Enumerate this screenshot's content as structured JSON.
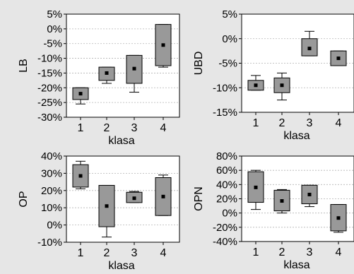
{
  "chart_data": [
    {
      "type": "box",
      "ylabel": "LB",
      "xlabel": "klasa",
      "categories": [
        "1",
        "2",
        "3",
        "4"
      ],
      "yticks": [
        "5%",
        "0%",
        "-5%",
        "-10%",
        "-15%",
        "-20%",
        "-25%",
        "-30%"
      ],
      "ytick_values": [
        5,
        0,
        -5,
        -10,
        -15,
        -20,
        -25,
        -30
      ],
      "ylim": [
        -30,
        5
      ],
      "series": [
        {
          "category": "1",
          "whisker_low": -25.5,
          "q1": -24,
          "mean": -22,
          "q3": -20,
          "whisker_high": -20
        },
        {
          "category": "2",
          "whisker_low": -18.5,
          "q1": -17.5,
          "mean": -15,
          "q3": -13,
          "whisker_high": -13
        },
        {
          "category": "3",
          "whisker_low": -21.5,
          "q1": -18.5,
          "mean": -13.5,
          "q3": -9,
          "whisker_high": -9
        },
        {
          "category": "4",
          "whisker_low": -13,
          "q1": -12.5,
          "mean": -5.5,
          "q3": 1.5,
          "whisker_high": 1.5
        }
      ]
    },
    {
      "type": "box",
      "ylabel": "UBD",
      "xlabel": "klasa",
      "categories": [
        "1",
        "2",
        "3",
        "4"
      ],
      "yticks": [
        "5%",
        "0%",
        "-5%",
        "-10%",
        "-15%"
      ],
      "ytick_values": [
        5,
        0,
        -5,
        -10,
        -15
      ],
      "ylim": [
        -15,
        5
      ],
      "series": [
        {
          "category": "1",
          "whisker_low": -10.5,
          "q1": -10.5,
          "mean": -9.5,
          "q3": -8.5,
          "whisker_high": -7.5
        },
        {
          "category": "2",
          "whisker_low": -12.5,
          "q1": -11,
          "mean": -9.5,
          "q3": -8,
          "whisker_high": -7
        },
        {
          "category": "3",
          "whisker_low": -3.5,
          "q1": -3.5,
          "mean": -2,
          "q3": 0,
          "whisker_high": 1.5
        },
        {
          "category": "4",
          "whisker_low": -5.5,
          "q1": -5.5,
          "mean": -4,
          "q3": -2.5,
          "whisker_high": -2.5
        }
      ]
    },
    {
      "type": "box",
      "ylabel": "OP",
      "xlabel": "klasa",
      "categories": [
        "1",
        "2",
        "3",
        "4"
      ],
      "yticks": [
        "40%",
        "30%",
        "20%",
        "10%",
        "0%",
        "-10%"
      ],
      "ytick_values": [
        40,
        30,
        20,
        10,
        0,
        -10
      ],
      "ylim": [
        -10,
        40
      ],
      "series": [
        {
          "category": "1",
          "whisker_low": 21,
          "q1": 22,
          "mean": 28.5,
          "q3": 35,
          "whisker_high": 37
        },
        {
          "category": "2",
          "whisker_low": -7,
          "q1": -1,
          "mean": 11,
          "q3": 23,
          "whisker_high": 23
        },
        {
          "category": "3",
          "whisker_low": 13,
          "q1": 13,
          "mean": 15.5,
          "q3": 19,
          "whisker_high": 19.5
        },
        {
          "category": "4",
          "whisker_low": 5.5,
          "q1": 5.5,
          "mean": 16.5,
          "q3": 27.5,
          "whisker_high": 29
        }
      ]
    },
    {
      "type": "box",
      "ylabel": "OPN",
      "xlabel": "klasa",
      "categories": [
        "1",
        "2",
        "3",
        "4"
      ],
      "yticks": [
        "80%",
        "60%",
        "40%",
        "20%",
        "0%",
        "-20%",
        "-40%"
      ],
      "ytick_values": [
        80,
        60,
        40,
        20,
        0,
        -20,
        -40
      ],
      "ylim": [
        -40,
        80
      ],
      "series": [
        {
          "category": "1",
          "whisker_low": 5,
          "q1": 15,
          "mean": 36,
          "q3": 58,
          "whisker_high": 60
        },
        {
          "category": "2",
          "whisker_low": 0,
          "q1": 3,
          "mean": 17,
          "q3": 32,
          "whisker_high": 33
        },
        {
          "category": "3",
          "whisker_low": 9,
          "q1": 13,
          "mean": 26,
          "q3": 39,
          "whisker_high": 39
        },
        {
          "category": "4",
          "whisker_low": -27,
          "q1": -25,
          "mean": -7,
          "q3": 12,
          "whisker_high": 12
        }
      ]
    }
  ],
  "colors": {
    "background": "#e6e6e6",
    "plot_area": "#ffffff",
    "box_fill": "#999999",
    "stroke": "#000000",
    "grid": "#b3b3b3"
  }
}
